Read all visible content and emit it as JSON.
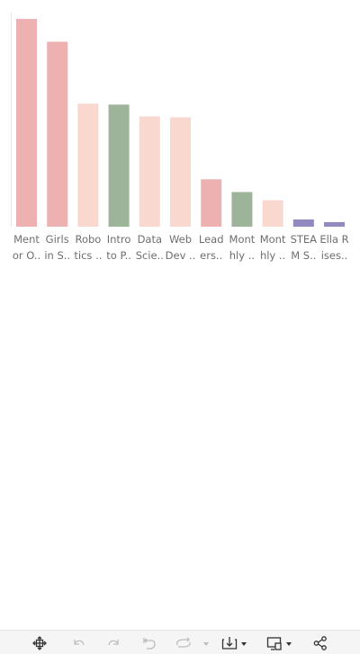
{
  "chart_data": {
    "type": "bar",
    "categories": [
      [
        "Ment",
        "or O.."
      ],
      [
        "Girls",
        "in S.."
      ],
      [
        "Robo",
        "tics .."
      ],
      [
        "Intro",
        "to P.."
      ],
      [
        "Data",
        "Scie.."
      ],
      [
        "Web",
        "Dev .."
      ],
      [
        "Lead",
        "ers.."
      ],
      [
        "Mont",
        "hly .."
      ],
      [
        "Mont",
        "hly .."
      ],
      [
        "STEA",
        "M S.."
      ],
      [
        "Ella R",
        "ises.."
      ]
    ],
    "values": [
      228,
      203,
      135,
      134,
      121,
      120,
      52,
      38,
      29,
      8,
      5
    ],
    "colors": [
      "#eeb1b2",
      "#eeb1b2",
      "#f9d8d0",
      "#9db39a",
      "#f9d8d0",
      "#f9d8d0",
      "#eeb1b2",
      "#9db39a",
      "#f9d8d0",
      "#9189c0",
      "#9189c0"
    ],
    "ylim": [
      0,
      230
    ],
    "title": "",
    "xlabel": "",
    "ylabel": "",
    "grid": false,
    "legend": "none"
  },
  "toolbar": {
    "icons": [
      "move-icon",
      "undo-icon",
      "redo-icon",
      "revert-icon",
      "refresh-icon",
      "download-icon",
      "device-layout-icon",
      "share-icon"
    ]
  }
}
